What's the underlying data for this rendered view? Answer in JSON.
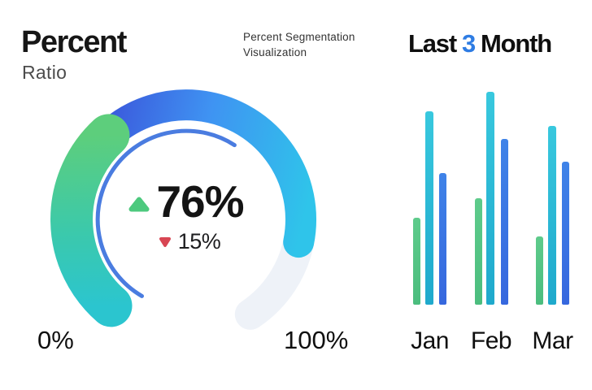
{
  "header": {
    "title": "Percent",
    "subtitle": "Ratio"
  },
  "note": {
    "text": "Percent Segmentation Visualization"
  },
  "right_title": {
    "prefix": "Last",
    "highlight": "3",
    "suffix": "Month",
    "highlight_color": "#2e7ce3"
  },
  "chart_data": [
    {
      "type": "gauge",
      "title": "Percent",
      "subtitle": "Ratio",
      "value_percent": 76,
      "value_label": "76%",
      "value_direction": "up",
      "delta_percent": 15,
      "delta_label": "15%",
      "delta_direction": "down",
      "min_label": "0%",
      "max_label": "100%",
      "axis_range": [
        0,
        100
      ],
      "colors": {
        "green_start": "#5dce7c",
        "green_mid": "#3cc9aa",
        "teal_end": "#2bc5cf",
        "blue_dark": "#3a4fd8",
        "blue_bright": "#3f93f2",
        "cyan_end": "#2fc4ea",
        "track": "#eef2f8",
        "inner_ring": "#4a7ce0",
        "up_triangle": "#4dc97e",
        "down_triangle": "#d84653"
      }
    },
    {
      "type": "bar",
      "title": "Last 3 Month",
      "categories": [
        "Jan",
        "Feb",
        "Mar"
      ],
      "series": [
        {
          "name": "green",
          "color": "#53c384",
          "color_top": "#5ecb8b",
          "color_bottom": "#4bbd7e",
          "values": [
            41,
            50,
            32
          ]
        },
        {
          "name": "cyan",
          "color": "#26b7d8",
          "color_top": "#38c8de",
          "color_bottom": "#1fa9cc",
          "values": [
            91,
            100,
            84
          ]
        },
        {
          "name": "blue",
          "color": "#3b74e4",
          "color_top": "#3f83e8",
          "color_bottom": "#3667de",
          "values": [
            62,
            78,
            67
          ]
        }
      ],
      "ylim": [
        0,
        100
      ],
      "grid": false,
      "legend": false
    }
  ]
}
